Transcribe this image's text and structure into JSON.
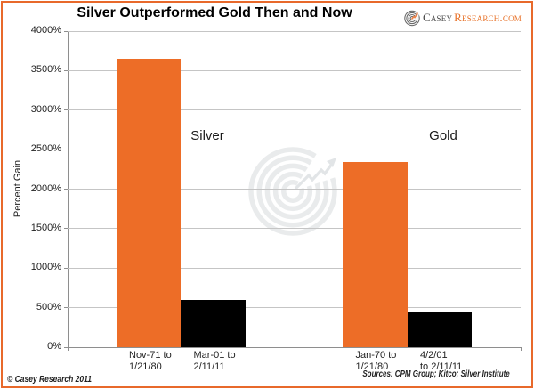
{
  "logo": {
    "brand_primary": "Casey",
    "brand_secondary": "Research.com"
  },
  "footer": {
    "copyright": "© Casey Research 2011",
    "sources": "Sources: CPM Group; Kitco; Silver Institute"
  },
  "colors": {
    "orange": "#ed6d27",
    "black": "#000000",
    "border": "#e8692b",
    "gridline": "#c5c5c5",
    "axis": "#8e8e8e",
    "watermark": "#e9ebec",
    "logo_gray": "#4a4a4a",
    "logo_orange": "#e8732a"
  },
  "chart_data": {
    "type": "bar",
    "title": "Silver Outperformed Gold Then and Now",
    "xlabel": "",
    "ylabel": "Percent Gain",
    "ylim": [
      0,
      4000
    ],
    "ytick_step": 500,
    "ytick_suffix": "%",
    "grid": true,
    "legend": "none",
    "groups": [
      {
        "label": "Silver",
        "bars": [
          {
            "category_lines": [
              "Nov-71 to",
              "1/21/80"
            ],
            "value": 3650,
            "color": "orange"
          },
          {
            "category_lines": [
              "Mar-01 to",
              "2/11/11"
            ],
            "value": 600,
            "color": "black"
          }
        ]
      },
      {
        "label": "Gold",
        "bars": [
          {
            "category_lines": [
              "Jan-70 to",
              "1/21/80"
            ],
            "value": 2340,
            "color": "orange"
          },
          {
            "category_lines": [
              "4/2/01",
              "to 2/11/11"
            ],
            "value": 440,
            "color": "black"
          }
        ]
      }
    ]
  }
}
